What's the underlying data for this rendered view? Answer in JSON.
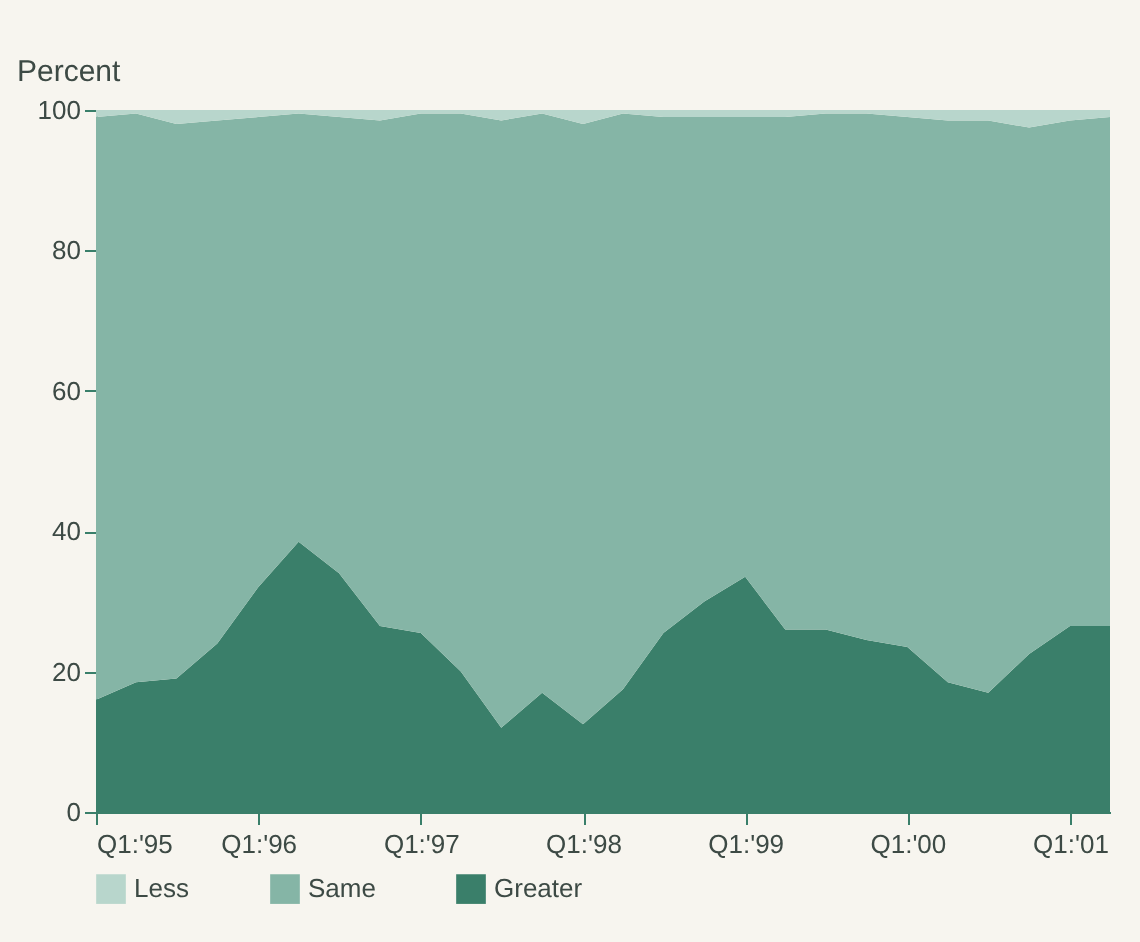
{
  "chart_data": {
    "type": "area",
    "stacked": true,
    "ylabel": "Percent",
    "x": [
      "1995-01",
      "1995-04",
      "1995-07",
      "1995-10",
      "1996-01",
      "1996-04",
      "1996-07",
      "1996-10",
      "1997-01",
      "1997-04",
      "1997-07",
      "1997-10",
      "1998-01",
      "1998-04",
      "1998-07",
      "1998-10",
      "1999-01",
      "1999-04",
      "1999-07",
      "1999-10",
      "2000-01",
      "2000-04",
      "2000-07",
      "2000-10",
      "2001-01",
      "2001-04"
    ],
    "series": [
      {
        "name": "Greater",
        "color": "#3a7f6a",
        "values": [
          16,
          18.5,
          19,
          24,
          32,
          38.5,
          34,
          26.5,
          25.5,
          20,
          12,
          17,
          12.5,
          17.5,
          25.5,
          30,
          33.5,
          26,
          26,
          24.5,
          23.5,
          18.5,
          17,
          22.5,
          26.5,
          26.5
        ]
      },
      {
        "name": "Same",
        "color": "#85b5a6",
        "values": [
          83,
          81,
          79,
          74.5,
          67,
          61,
          65,
          72,
          74,
          79.5,
          86.5,
          82.5,
          85.5,
          82,
          73.5,
          69,
          65.5,
          73,
          73.5,
          75,
          75.5,
          80,
          81.5,
          75,
          72,
          72.5
        ]
      },
      {
        "name": "Less",
        "color": "#b8d6cc",
        "values": [
          1,
          0.5,
          2,
          1.5,
          1,
          0.5,
          1,
          1.5,
          0.5,
          0.5,
          1.5,
          0.5,
          2,
          0.5,
          1,
          1,
          1,
          1,
          0.5,
          0.5,
          1,
          1.5,
          1.5,
          2.5,
          1.5,
          1
        ]
      }
    ],
    "xlim": [
      "1995-01",
      "2001-04"
    ],
    "xticks": [
      {
        "value": "1995-01",
        "label": "Q1:'95"
      },
      {
        "value": "1996-01",
        "label": "Q1:'96"
      },
      {
        "value": "1997-01",
        "label": "Q1:'97"
      },
      {
        "value": "1998-01",
        "label": "Q1:'98"
      },
      {
        "value": "1999-01",
        "label": "Q1:'99"
      },
      {
        "value": "2000-01",
        "label": "Q1:'00"
      },
      {
        "value": "2001-01",
        "label": "Q1:'01"
      }
    ],
    "ylim": [
      0,
      100
    ],
    "yticks": [
      0,
      20,
      40,
      60,
      80,
      100
    ],
    "grid": false,
    "legend": "bottom"
  }
}
